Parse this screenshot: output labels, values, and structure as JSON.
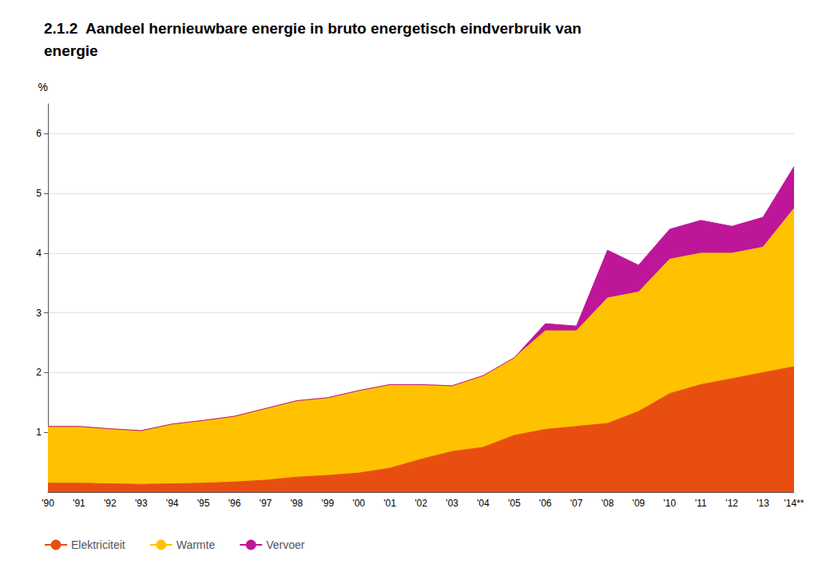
{
  "chart_data": {
    "type": "area",
    "title": "2.1.2  Aandeel hernieuwbare energie in bruto energetisch eindverbruik van\nenergie",
    "ylabel": "%",
    "categories": [
      "'90",
      "'91",
      "'92",
      "'93",
      "'94",
      "'95",
      "'96",
      "'97",
      "'98",
      "'99",
      "'00",
      "'01",
      "'02",
      "'03",
      "'04",
      "'05",
      "'06",
      "'07",
      "'08",
      "'09",
      "'10",
      "'11",
      "'12",
      "'13",
      "'14**"
    ],
    "series": [
      {
        "name": "Elektriciteit",
        "color": "#E84E10",
        "values": [
          0.15,
          0.15,
          0.14,
          0.13,
          0.14,
          0.15,
          0.17,
          0.2,
          0.25,
          0.28,
          0.32,
          0.4,
          0.55,
          0.68,
          0.75,
          0.95,
          1.05,
          1.1,
          1.15,
          1.35,
          1.65,
          1.8,
          1.9,
          2.0,
          2.1
        ]
      },
      {
        "name": "Warmte",
        "color": "#FFC200",
        "values": [
          0.95,
          0.95,
          0.92,
          0.9,
          1.0,
          1.05,
          1.1,
          1.2,
          1.28,
          1.3,
          1.38,
          1.4,
          1.25,
          1.1,
          1.2,
          1.3,
          1.65,
          1.6,
          2.1,
          2.0,
          2.25,
          2.2,
          2.1,
          2.1,
          2.65
        ]
      },
      {
        "name": "Vervoer",
        "color": "#BE1698",
        "values": [
          0.0,
          0.0,
          0.0,
          0.0,
          0.0,
          0.0,
          0.0,
          0.0,
          0.0,
          0.0,
          0.0,
          0.0,
          0.0,
          0.0,
          0.0,
          0.0,
          0.12,
          0.08,
          0.8,
          0.45,
          0.5,
          0.55,
          0.45,
          0.5,
          0.7
        ]
      }
    ],
    "ylim": [
      0,
      6.5
    ],
    "yticks": [
      1,
      2,
      3,
      4,
      5,
      6
    ],
    "grid": true,
    "legend": "lower left",
    "stacked": true
  }
}
